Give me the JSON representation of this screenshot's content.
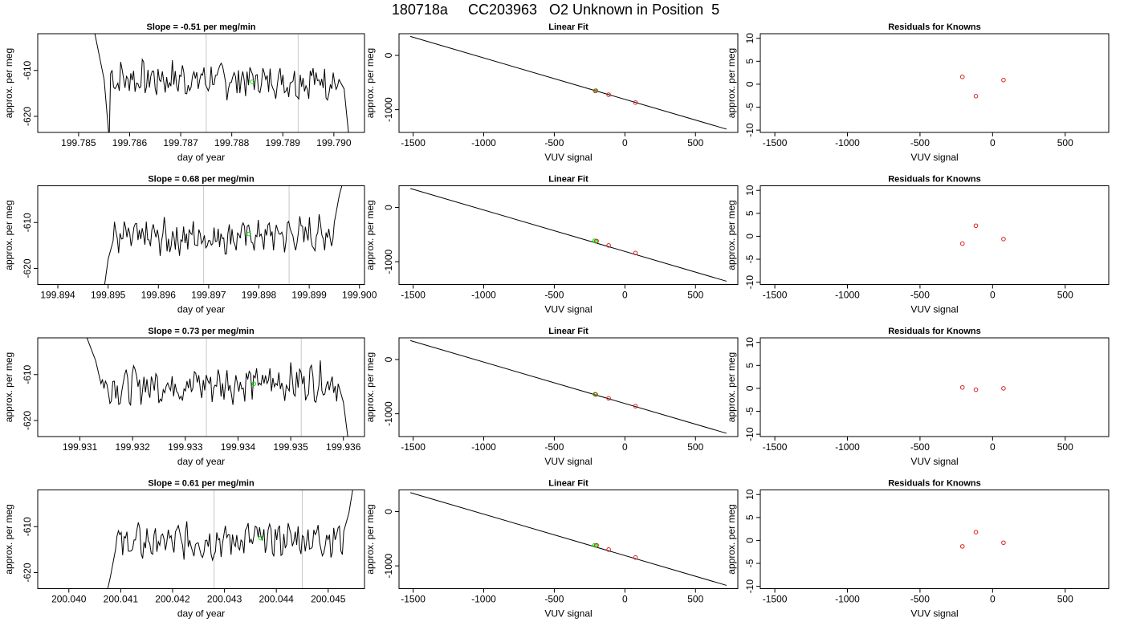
{
  "main_title": "180718a     CC203963   O2 Unknown in Position  5",
  "colors": {
    "trace": "#000000",
    "vline": "#c8c8c8",
    "unknown": "#00dd00",
    "known": "#dd2222",
    "frame": "#000000"
  },
  "chart_data": [
    {
      "type": "line",
      "panel": "time",
      "row": 0,
      "title": "Slope =  -0.51  per meg/min",
      "xlabel": "day of year",
      "ylabel": "approx. per meg",
      "xlim": [
        199.7842,
        199.7906
      ],
      "ylim": [
        -623.5,
        -602.0
      ],
      "xticks": [
        199.785,
        199.786,
        199.787,
        199.788,
        199.789,
        199.79
      ],
      "xtick_labels": [
        "199.785",
        "199.786",
        "199.787",
        "199.788",
        "199.789",
        "199.790"
      ],
      "yticks": [
        -610,
        -620
      ],
      "ytick_labels": [
        "-610",
        "-620"
      ],
      "x_start": 199.7853,
      "x_end": 199.7903,
      "base": -612.0,
      "ramp_in": [
        [
          199.7853,
          -601
        ],
        [
          199.7855,
          -612
        ],
        [
          199.7856,
          -625
        ]
      ],
      "ramp_out": [
        [
          199.7901,
          -612
        ],
        [
          199.7902,
          -614
        ],
        [
          199.7903,
          -625
        ]
      ],
      "vlines": [
        199.7875,
        199.7893
      ],
      "unknown_point": [
        199.7884,
        -612.5
      ]
    },
    {
      "type": "line",
      "panel": "fit",
      "row": 0,
      "title": "Linear Fit",
      "xlabel": "VUV signal",
      "ylabel": "approx. per meg",
      "xlim": [
        -1600,
        800
      ],
      "ylim": [
        -1420,
        400
      ],
      "xticks": [
        -1500,
        -1000,
        -500,
        0,
        500
      ],
      "xtick_labels": [
        "-1500",
        "-1000",
        "-500",
        "0",
        "500"
      ],
      "yticks": [
        0,
        -1000
      ],
      "ytick_labels": [
        "0",
        "-1000"
      ],
      "fit_line": [
        [
          -1520,
          350
        ],
        [
          720,
          -1360
        ]
      ],
      "unknown_points": [
        [
          -210,
          -655
        ],
        [
          -205,
          -650
        ]
      ],
      "known_points": [
        [
          -115,
          -725
        ],
        [
          75,
          -870
        ],
        [
          -208,
          -655
        ]
      ]
    },
    {
      "type": "scatter",
      "panel": "resid",
      "row": 0,
      "title": "Residuals for Knowns",
      "xlabel": "VUV signal",
      "ylabel": "approx. per meg",
      "xlim": [
        -1600,
        800
      ],
      "ylim": [
        -10.5,
        11
      ],
      "xticks": [
        -1500,
        -1000,
        -500,
        0,
        500
      ],
      "xtick_labels": [
        "-1500",
        "-1000",
        "-500",
        "0",
        "500"
      ],
      "yticks": [
        10,
        5,
        0,
        -5,
        -10
      ],
      "ytick_labels": [
        "10",
        "5",
        "0",
        "-5",
        "-10"
      ],
      "known_points": [
        [
          -208,
          1.6
        ],
        [
          -115,
          -2.6
        ],
        [
          75,
          0.9
        ]
      ]
    },
    {
      "type": "line",
      "panel": "time",
      "row": 1,
      "title": "Slope =  0.68  per meg/min",
      "xlabel": "day of year",
      "ylabel": "approx. per meg",
      "xlim": [
        199.8936,
        199.9001
      ],
      "ylim": [
        -623.5,
        -602.0
      ],
      "xticks": [
        199.894,
        199.895,
        199.896,
        199.897,
        199.898,
        199.899,
        199.9
      ],
      "xtick_labels": [
        "199.894",
        "199.895",
        "199.896",
        "199.897",
        "199.898",
        "199.899",
        "199.900"
      ],
      "yticks": [
        -610,
        -620
      ],
      "ytick_labels": [
        "-610",
        "-620"
      ],
      "x_start": 199.8949,
      "x_end": 199.8997,
      "base": -613.0,
      "ramp_in": [
        [
          199.8949,
          -626
        ],
        [
          199.895,
          -618
        ],
        [
          199.8951,
          -614
        ]
      ],
      "ramp_out": [
        [
          199.8995,
          -610
        ],
        [
          199.8996,
          -604
        ],
        [
          199.8997,
          -600
        ]
      ],
      "vlines": [
        199.8969,
        199.8986
      ],
      "unknown_point": [
        199.8978,
        -612.5
      ]
    },
    {
      "type": "line",
      "panel": "fit",
      "row": 1,
      "title": "Linear Fit",
      "xlabel": "VUV signal",
      "ylabel": "approx. per meg",
      "xlim": [
        -1600,
        800
      ],
      "ylim": [
        -1420,
        400
      ],
      "xticks": [
        -1500,
        -1000,
        -500,
        0,
        500
      ],
      "xtick_labels": [
        "-1500",
        "-1000",
        "-500",
        "0",
        "500"
      ],
      "yticks": [
        0,
        -1000
      ],
      "ytick_labels": [
        "0",
        "-1000"
      ],
      "fit_line": [
        [
          -1520,
          350
        ],
        [
          720,
          -1360
        ]
      ],
      "unknown_points": [
        [
          -215,
          -615
        ],
        [
          -205,
          -625
        ]
      ],
      "known_points": [
        [
          -115,
          -700
        ],
        [
          75,
          -840
        ],
        [
          -200,
          -620
        ]
      ]
    },
    {
      "type": "scatter",
      "panel": "resid",
      "row": 1,
      "title": "Residuals for Knowns",
      "xlabel": "VUV signal",
      "ylabel": "approx. per meg",
      "xlim": [
        -1600,
        800
      ],
      "ylim": [
        -10.5,
        11
      ],
      "xticks": [
        -1500,
        -1000,
        -500,
        0,
        500
      ],
      "xtick_labels": [
        "-1500",
        "-1000",
        "-500",
        "0",
        "500"
      ],
      "yticks": [
        10,
        5,
        0,
        -5,
        -10
      ],
      "ytick_labels": [
        "10",
        "5",
        "0",
        "-5",
        "-10"
      ],
      "known_points": [
        [
          -208,
          -1.6
        ],
        [
          -115,
          2.3
        ],
        [
          75,
          -0.6
        ]
      ]
    },
    {
      "type": "line",
      "panel": "time",
      "row": 2,
      "title": "Slope =  0.73  per meg/min",
      "xlabel": "day of year",
      "ylabel": "approx. per meg",
      "xlim": [
        199.9302,
        199.9364
      ],
      "ylim": [
        -623.5,
        -602.0
      ],
      "xticks": [
        199.931,
        199.932,
        199.933,
        199.934,
        199.935,
        199.936
      ],
      "xtick_labels": [
        "199.931",
        "199.932",
        "199.933",
        "199.934",
        "199.935",
        "199.936"
      ],
      "yticks": [
        -610,
        -620
      ],
      "ytick_labels": [
        "-610",
        "-620"
      ],
      "x_start": 199.9311,
      "x_end": 199.9361,
      "base": -612.0,
      "ramp_in": [
        [
          199.9311,
          -601
        ],
        [
          199.9313,
          -607
        ],
        [
          199.9314,
          -612
        ]
      ],
      "ramp_out": [
        [
          199.9359,
          -612
        ],
        [
          199.936,
          -616
        ],
        [
          199.9361,
          -625
        ]
      ],
      "vlines": [
        199.9334,
        199.9352
      ],
      "unknown_point": [
        199.9343,
        -612.0
      ]
    },
    {
      "type": "line",
      "panel": "fit",
      "row": 2,
      "title": "Linear Fit",
      "xlabel": "VUV signal",
      "ylabel": "approx. per meg",
      "xlim": [
        -1600,
        800
      ],
      "ylim": [
        -1420,
        400
      ],
      "xticks": [
        -1500,
        -1000,
        -500,
        0,
        500
      ],
      "xtick_labels": [
        "-1500",
        "-1000",
        "-500",
        "0",
        "500"
      ],
      "yticks": [
        0,
        -1000
      ],
      "ytick_labels": [
        "0",
        "-1000"
      ],
      "fit_line": [
        [
          -1520,
          350
        ],
        [
          720,
          -1360
        ]
      ],
      "unknown_points": [
        [
          -212,
          -640
        ],
        [
          -206,
          -645
        ]
      ],
      "known_points": [
        [
          -115,
          -715
        ],
        [
          75,
          -860
        ],
        [
          -208,
          -642
        ]
      ]
    },
    {
      "type": "scatter",
      "panel": "resid",
      "row": 2,
      "title": "Residuals for Knowns",
      "xlabel": "VUV signal",
      "ylabel": "approx. per meg",
      "xlim": [
        -1600,
        800
      ],
      "ylim": [
        -10.5,
        11
      ],
      "xticks": [
        -1500,
        -1000,
        -500,
        0,
        500
      ],
      "xtick_labels": [
        "-1500",
        "-1000",
        "-500",
        "0",
        "500"
      ],
      "yticks": [
        10,
        5,
        0,
        -5,
        -10
      ],
      "ytick_labels": [
        "10",
        "5",
        "0",
        "-5",
        "-10"
      ],
      "known_points": [
        [
          -208,
          0.2
        ],
        [
          -115,
          -0.3
        ],
        [
          75,
          0.0
        ]
      ]
    },
    {
      "type": "line",
      "panel": "time",
      "row": 3,
      "title": "Slope =  0.61  per meg/min",
      "xlabel": "day of year",
      "ylabel": "approx. per meg",
      "xlim": [
        200.0394,
        200.0457
      ],
      "ylim": [
        -623.5,
        -602.0
      ],
      "xticks": [
        200.04,
        200.041,
        200.042,
        200.043,
        200.044,
        200.045
      ],
      "xtick_labels": [
        "200.040",
        "200.041",
        "200.042",
        "200.043",
        "200.044",
        "200.045"
      ],
      "yticks": [
        -610,
        -620
      ],
      "ytick_labels": [
        "-610",
        "-620"
      ],
      "x_start": 200.0407,
      "x_end": 200.0455,
      "base": -613.0,
      "ramp_in": [
        [
          200.0407,
          -626
        ],
        [
          200.0408,
          -621
        ],
        [
          200.0409,
          -615
        ]
      ],
      "ramp_out": [
        [
          200.0453,
          -611
        ],
        [
          200.0454,
          -607
        ],
        [
          200.0455,
          -600
        ]
      ],
      "vlines": [
        200.0428,
        200.0445
      ],
      "unknown_point": [
        200.0437,
        -612.5
      ]
    },
    {
      "type": "line",
      "panel": "fit",
      "row": 3,
      "title": "Linear Fit",
      "xlabel": "VUV signal",
      "ylabel": "approx. per meg",
      "xlim": [
        -1600,
        800
      ],
      "ylim": [
        -1420,
        400
      ],
      "xticks": [
        -1500,
        -1000,
        -500,
        0,
        500
      ],
      "xtick_labels": [
        "-1500",
        "-1000",
        "-500",
        "0",
        "500"
      ],
      "yticks": [
        0,
        -1000
      ],
      "ytick_labels": [
        "0",
        "-1000"
      ],
      "fit_line": [
        [
          -1520,
          350
        ],
        [
          720,
          -1360
        ]
      ],
      "unknown_points": [
        [
          -215,
          -620
        ],
        [
          -205,
          -625
        ]
      ],
      "known_points": [
        [
          -115,
          -700
        ],
        [
          75,
          -845
        ],
        [
          -200,
          -622
        ]
      ]
    },
    {
      "type": "scatter",
      "panel": "resid",
      "row": 3,
      "title": "Residuals for Knowns",
      "xlabel": "VUV signal",
      "ylabel": "approx. per meg",
      "xlim": [
        -1600,
        800
      ],
      "ylim": [
        -10.5,
        11
      ],
      "xticks": [
        -1500,
        -1000,
        -500,
        0,
        500
      ],
      "xtick_labels": [
        "-1500",
        "-1000",
        "-500",
        "0",
        "500"
      ],
      "yticks": [
        10,
        5,
        0,
        -5,
        -10
      ],
      "ytick_labels": [
        "10",
        "5",
        "0",
        "-5",
        "-10"
      ],
      "known_points": [
        [
          -208,
          -1.3
        ],
        [
          -115,
          1.8
        ],
        [
          75,
          -0.5
        ]
      ]
    }
  ]
}
